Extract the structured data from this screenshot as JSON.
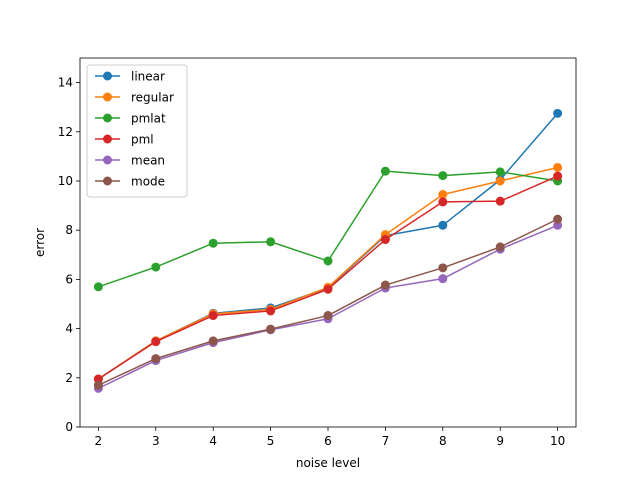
{
  "chart_data": {
    "type": "line",
    "title": "",
    "xlabel": "noise level",
    "ylabel": "error",
    "xlim": [
      1.68,
      10.32
    ],
    "ylim": [
      0,
      15
    ],
    "x": [
      2,
      3,
      4,
      5,
      6,
      7,
      8,
      9,
      10
    ],
    "xticks": [
      "2",
      "3",
      "4",
      "5",
      "6",
      "7",
      "8",
      "9",
      "10"
    ],
    "yticks": [
      "0",
      "2",
      "4",
      "6",
      "8",
      "10",
      "12",
      "14"
    ],
    "grid": false,
    "legend_position": "upper-left",
    "series": [
      {
        "name": "linear",
        "color": "#1f77b4",
        "values": [
          1.95,
          3.5,
          4.62,
          4.84,
          5.65,
          7.78,
          8.2,
          10.05,
          12.75
        ]
      },
      {
        "name": "regular",
        "color": "#ff7f0e",
        "values": [
          1.95,
          3.5,
          4.6,
          4.78,
          5.68,
          7.82,
          9.45,
          10.0,
          10.55
        ]
      },
      {
        "name": "pmlat",
        "color": "#2ca02c",
        "values": [
          5.7,
          6.5,
          7.47,
          7.53,
          6.75,
          10.4,
          10.22,
          10.37,
          10.0
        ]
      },
      {
        "name": "pml",
        "color": "#d62728",
        "values": [
          1.95,
          3.47,
          4.53,
          4.72,
          5.6,
          7.62,
          9.15,
          9.18,
          10.2
        ]
      },
      {
        "name": "mean",
        "color": "#9467bd",
        "values": [
          1.57,
          2.7,
          3.43,
          3.95,
          4.4,
          5.65,
          6.03,
          7.23,
          8.2
        ]
      },
      {
        "name": "mode",
        "color": "#8c564b",
        "values": [
          1.7,
          2.78,
          3.5,
          3.98,
          4.53,
          5.77,
          6.47,
          7.32,
          8.45
        ]
      }
    ]
  }
}
